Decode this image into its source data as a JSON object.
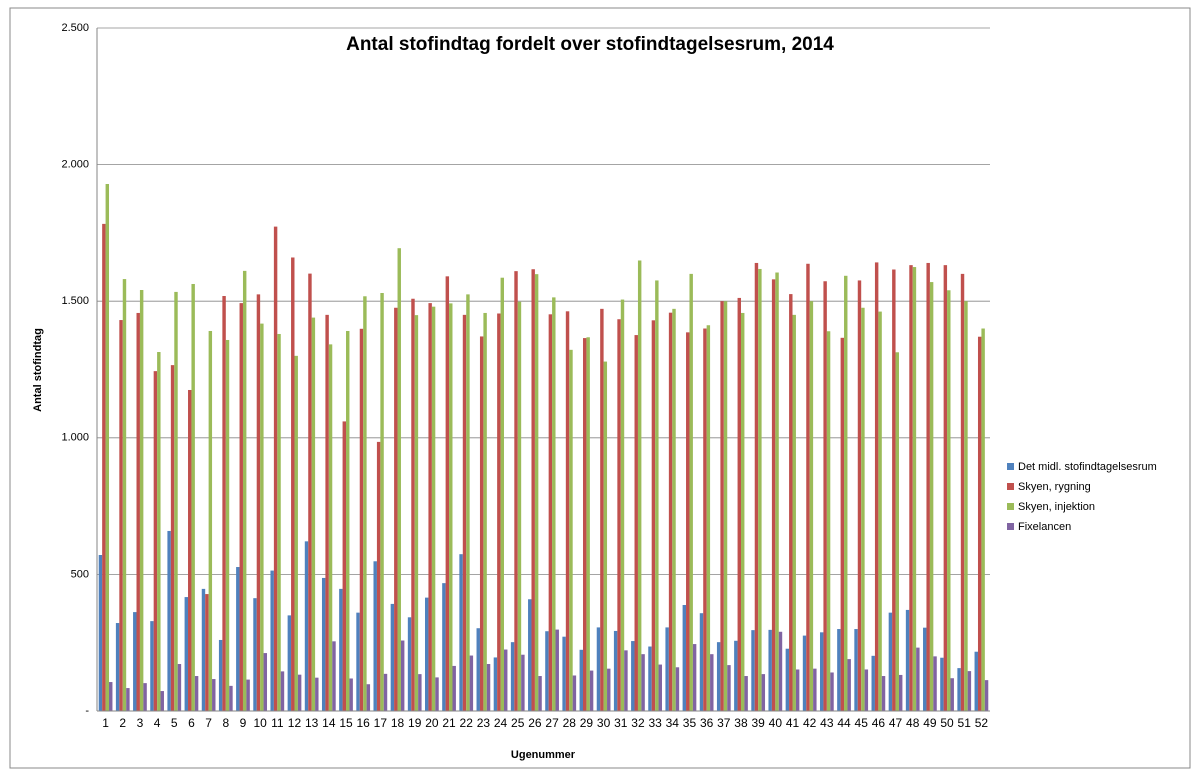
{
  "chart_data": {
    "type": "bar",
    "title": "Antal stofindtag fordelt over stofindtagelsesrum, 2014",
    "x_label": "Ugenummer",
    "y_label": "Antal stofindtag",
    "categories": [
      "1",
      "2",
      "3",
      "4",
      "5",
      "6",
      "7",
      "8",
      "9",
      "10",
      "11",
      "12",
      "13",
      "14",
      "15",
      "16",
      "17",
      "18",
      "19",
      "20",
      "21",
      "22",
      "23",
      "24",
      "25",
      "26",
      "27",
      "28",
      "29",
      "30",
      "31",
      "32",
      "33",
      "34",
      "35",
      "36",
      "37",
      "38",
      "39",
      "40",
      "41",
      "42",
      "43",
      "44",
      "45",
      "46",
      "47",
      "48",
      "49",
      "50",
      "51",
      "52"
    ],
    "series": [
      {
        "name": "Det midl. stofindtagelsesrum",
        "color": "#4f81bd",
        "values": [
          571,
          322,
          362,
          329,
          659,
          417,
          447,
          260,
          527,
          413,
          514,
          350,
          621,
          487,
          447,
          360,
          548,
          392,
          343,
          415,
          468,
          574,
          303,
          196,
          252,
          409,
          292,
          272,
          224,
          306,
          293,
          256,
          236,
          306,
          388,
          358,
          252,
          257,
          296,
          297,
          228,
          276,
          288,
          300,
          300,
          202,
          360,
          370,
          305,
          195,
          157,
          217
        ]
      },
      {
        "name": "Skyen, rygning",
        "color": "#c0504d",
        "values": [
          1783,
          1431,
          1457,
          1244,
          1266,
          1175,
          428,
          1519,
          1493,
          1525,
          1773,
          1660,
          1601,
          1450,
          1060,
          1399,
          985,
          1476,
          1509,
          1493,
          1591,
          1450,
          1371,
          1455,
          1610,
          1617,
          1452,
          1463,
          1365,
          1472,
          1434,
          1376,
          1430,
          1458,
          1386,
          1400,
          1500,
          1512,
          1640,
          1580,
          1526,
          1637,
          1573,
          1366,
          1576,
          1642,
          1616,
          1632,
          1640,
          1632,
          1600,
          1370
        ]
      },
      {
        "name": "Skyen, injektion",
        "color": "#9bbb59",
        "values": [
          1929,
          1581,
          1541,
          1314,
          1534,
          1563,
          1391,
          1358,
          1611,
          1418,
          1380,
          1300,
          1440,
          1342,
          1391,
          1518,
          1530,
          1694,
          1449,
          1480,
          1492,
          1525,
          1457,
          1586,
          1498,
          1599,
          1514,
          1322,
          1368,
          1279,
          1506,
          1649,
          1576,
          1472,
          1600,
          1412,
          1500,
          1457,
          1618,
          1605,
          1450,
          1500,
          1390,
          1593,
          1476,
          1462,
          1313,
          1625,
          1570,
          1540,
          1500,
          1400
        ]
      },
      {
        "name": "Fixelancen",
        "color": "#8064a2",
        "values": [
          106,
          84,
          102,
          73,
          172,
          128,
          117,
          92,
          115,
          212,
          145,
          133,
          122,
          255,
          119,
          98,
          136,
          258,
          135,
          123,
          165,
          203,
          172,
          225,
          206,
          128,
          298,
          130,
          148,
          155,
          222,
          208,
          170,
          160,
          245,
          208,
          168,
          128,
          135,
          290,
          152,
          155,
          141,
          190,
          152,
          128,
          132,
          232,
          200,
          120,
          146,
          113
        ]
      }
    ],
    "ylim": [
      0,
      2500
    ],
    "yticks": [
      {
        "value": 0,
        "label": "-"
      },
      500,
      {
        "value": 1000,
        "label": "1.000"
      },
      {
        "value": 1500,
        "label": "1.500"
      },
      {
        "value": 2000,
        "label": "2.000"
      },
      {
        "value": 2500,
        "label": "2.500"
      }
    ],
    "grid": true,
    "legend": "right"
  }
}
